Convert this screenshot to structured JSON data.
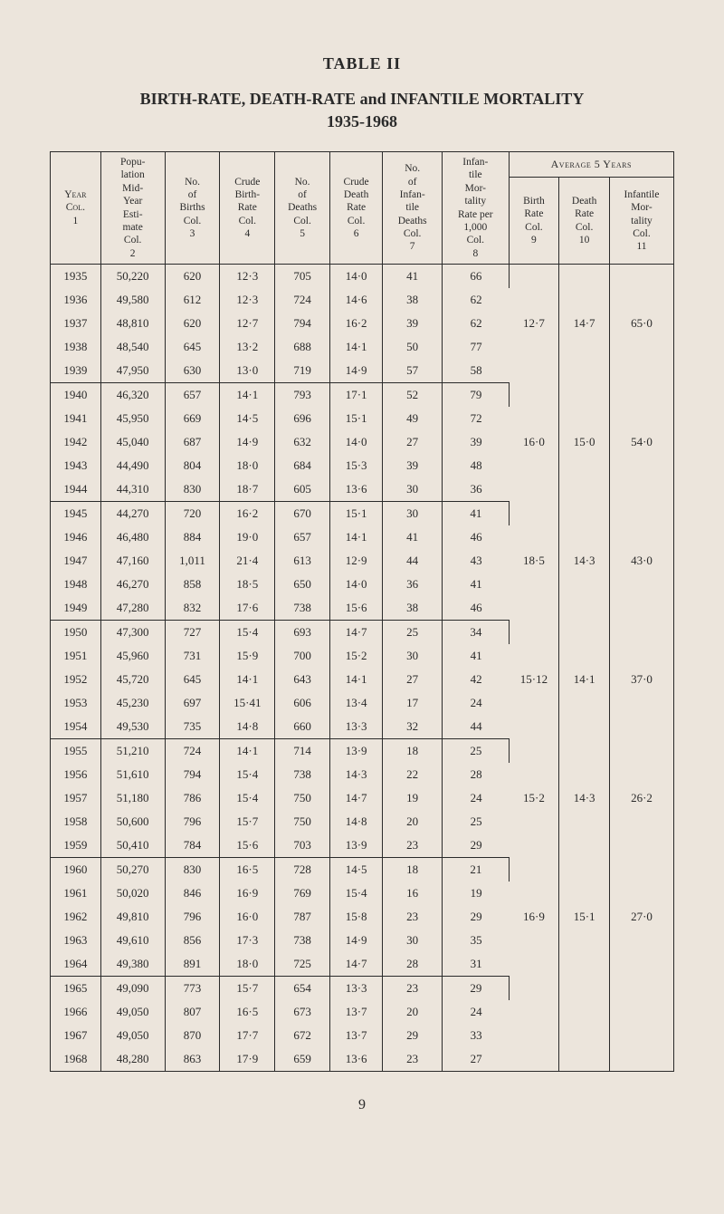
{
  "heading": {
    "table_number": "TABLE II",
    "title": "BIRTH-RATE, DEATH-RATE and INFANTILE MORTALITY",
    "years": "1935-1968"
  },
  "columns": {
    "avg_header": "Average 5 Years",
    "c1": "Year\nCol.\n1",
    "c2": "Popu-\nlation\nMid-\nYear\nEsti-\nmate\nCol.\n2",
    "c3": "No.\nof\nBirths\nCol.\n3",
    "c4": "Crude\nBirth-\nRate\nCol.\n4",
    "c5": "No.\nof\nDeaths\nCol.\n5",
    "c6": "Crude\nDeath\nRate\nCol.\n6",
    "c7": "No.\nof\nInfan-\ntile\nDeaths\nCol.\n7",
    "c8": "Infan-\ntile\nMor-\ntality\nRate per\n1,000\nCol.\n8",
    "c9": "Birth\nRate\nCol.\n9",
    "c10": "Death\nRate\nCol.\n10",
    "c11": "Infantile\nMor-\ntality\nCol.\n11"
  },
  "groups": [
    {
      "avg": {
        "birth": "12·7",
        "death": "14·7",
        "infant": "65·0"
      },
      "rows": [
        [
          "1935",
          "50,220",
          "620",
          "12·3",
          "705",
          "14·0",
          "41",
          "66"
        ],
        [
          "1936",
          "49,580",
          "612",
          "12·3",
          "724",
          "14·6",
          "38",
          "62"
        ],
        [
          "1937",
          "48,810",
          "620",
          "12·7",
          "794",
          "16·2",
          "39",
          "62"
        ],
        [
          "1938",
          "48,540",
          "645",
          "13·2",
          "688",
          "14·1",
          "50",
          "77"
        ],
        [
          "1939",
          "47,950",
          "630",
          "13·0",
          "719",
          "14·9",
          "57",
          "58"
        ]
      ]
    },
    {
      "avg": {
        "birth": "16·0",
        "death": "15·0",
        "infant": "54·0"
      },
      "rows": [
        [
          "1940",
          "46,320",
          "657",
          "14·1",
          "793",
          "17·1",
          "52",
          "79"
        ],
        [
          "1941",
          "45,950",
          "669",
          "14·5",
          "696",
          "15·1",
          "49",
          "72"
        ],
        [
          "1942",
          "45,040",
          "687",
          "14·9",
          "632",
          "14·0",
          "27",
          "39"
        ],
        [
          "1943",
          "44,490",
          "804",
          "18·0",
          "684",
          "15·3",
          "39",
          "48"
        ],
        [
          "1944",
          "44,310",
          "830",
          "18·7",
          "605",
          "13·6",
          "30",
          "36"
        ]
      ]
    },
    {
      "avg": {
        "birth": "18·5",
        "death": "14·3",
        "infant": "43·0"
      },
      "rows": [
        [
          "1945",
          "44,270",
          "720",
          "16·2",
          "670",
          "15·1",
          "30",
          "41"
        ],
        [
          "1946",
          "46,480",
          "884",
          "19·0",
          "657",
          "14·1",
          "41",
          "46"
        ],
        [
          "1947",
          "47,160",
          "1,011",
          "21·4",
          "613",
          "12·9",
          "44",
          "43"
        ],
        [
          "1948",
          "46,270",
          "858",
          "18·5",
          "650",
          "14·0",
          "36",
          "41"
        ],
        [
          "1949",
          "47,280",
          "832",
          "17·6",
          "738",
          "15·6",
          "38",
          "46"
        ]
      ]
    },
    {
      "avg": {
        "birth": "15·12",
        "death": "14·1",
        "infant": "37·0"
      },
      "rows": [
        [
          "1950",
          "47,300",
          "727",
          "15·4",
          "693",
          "14·7",
          "25",
          "34"
        ],
        [
          "1951",
          "45,960",
          "731",
          "15·9",
          "700",
          "15·2",
          "30",
          "41"
        ],
        [
          "1952",
          "45,720",
          "645",
          "14·1",
          "643",
          "14·1",
          "27",
          "42"
        ],
        [
          "1953",
          "45,230",
          "697",
          "15·41",
          "606",
          "13·4",
          "17",
          "24"
        ],
        [
          "1954",
          "49,530",
          "735",
          "14·8",
          "660",
          "13·3",
          "32",
          "44"
        ]
      ]
    },
    {
      "avg": {
        "birth": "15·2",
        "death": "14·3",
        "infant": "26·2"
      },
      "rows": [
        [
          "1955",
          "51,210",
          "724",
          "14·1",
          "714",
          "13·9",
          "18",
          "25"
        ],
        [
          "1956",
          "51,610",
          "794",
          "15·4",
          "738",
          "14·3",
          "22",
          "28"
        ],
        [
          "1957",
          "51,180",
          "786",
          "15·4",
          "750",
          "14·7",
          "19",
          "24"
        ],
        [
          "1958",
          "50,600",
          "796",
          "15·7",
          "750",
          "14·8",
          "20",
          "25"
        ],
        [
          "1959",
          "50,410",
          "784",
          "15·6",
          "703",
          "13·9",
          "23",
          "29"
        ]
      ]
    },
    {
      "avg": {
        "birth": "16·9",
        "death": "15·1",
        "infant": "27·0"
      },
      "rows": [
        [
          "1960",
          "50,270",
          "830",
          "16·5",
          "728",
          "14·5",
          "18",
          "21"
        ],
        [
          "1961",
          "50,020",
          "846",
          "16·9",
          "769",
          "15·4",
          "16",
          "19"
        ],
        [
          "1962",
          "49,810",
          "796",
          "16·0",
          "787",
          "15·8",
          "23",
          "29"
        ],
        [
          "1963",
          "49,610",
          "856",
          "17·3",
          "738",
          "14·9",
          "30",
          "35"
        ],
        [
          "1964",
          "49,380",
          "891",
          "18·0",
          "725",
          "14·7",
          "28",
          "31"
        ]
      ]
    },
    {
      "avg": {
        "birth": "",
        "death": "",
        "infant": ""
      },
      "rows": [
        [
          "1965",
          "49,090",
          "773",
          "15·7",
          "654",
          "13·3",
          "23",
          "29"
        ],
        [
          "1966",
          "49,050",
          "807",
          "16·5",
          "673",
          "13·7",
          "20",
          "24"
        ],
        [
          "1967",
          "49,050",
          "870",
          "17·7",
          "672",
          "13·7",
          "29",
          "33"
        ],
        [
          "1968",
          "48,280",
          "863",
          "17·9",
          "659",
          "13·6",
          "23",
          "27"
        ]
      ]
    }
  ],
  "page_number": "9"
}
